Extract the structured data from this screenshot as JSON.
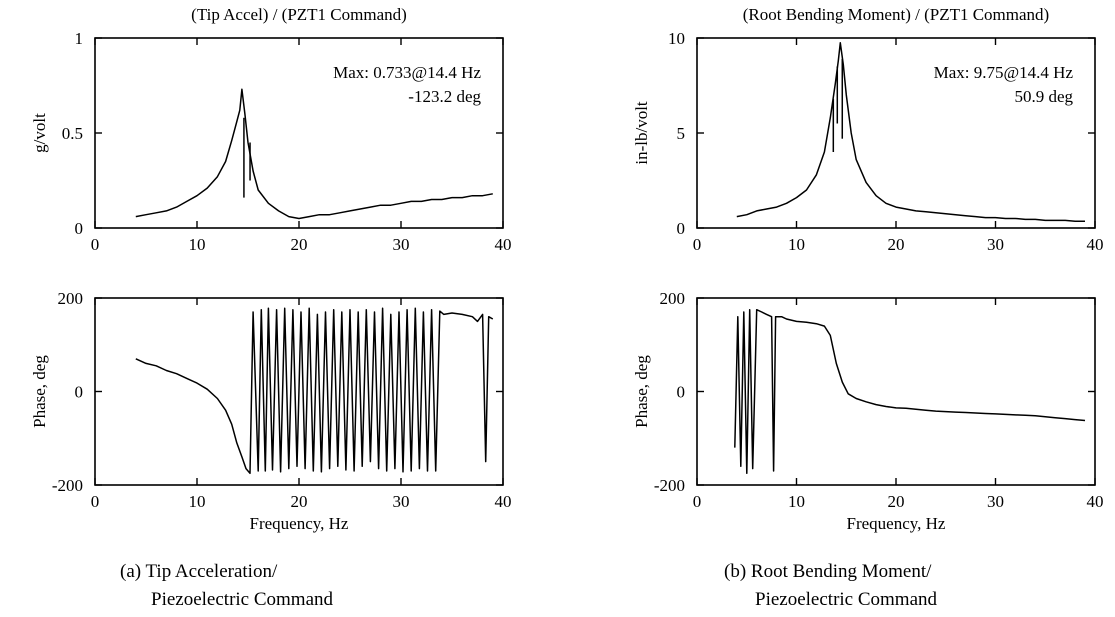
{
  "chart_data": [
    {
      "type": "line",
      "title": "(Tip Accel) / (PZT1 Command)",
      "xlabel": "",
      "ylabel": "g/volt",
      "xlim": [
        0,
        40
      ],
      "ylim": [
        0,
        1
      ],
      "xticks": [
        "0",
        "10",
        "20",
        "30",
        "40"
      ],
      "yticks": [
        "0",
        "0.5",
        "1"
      ],
      "annotation": [
        "Max: 0.733@14.4 Hz",
        "-123.2 deg"
      ],
      "series": [
        {
          "values": [
            [
              4,
              0.06
            ],
            [
              5,
              0.07
            ],
            [
              6,
              0.08
            ],
            [
              7,
              0.09
            ],
            [
              8,
              0.11
            ],
            [
              9,
              0.14
            ],
            [
              10,
              0.17
            ],
            [
              11,
              0.21
            ],
            [
              12,
              0.27
            ],
            [
              12.8,
              0.35
            ],
            [
              13.4,
              0.46
            ],
            [
              13.9,
              0.56
            ],
            [
              14.2,
              0.62
            ],
            [
              14.4,
              0.73
            ],
            [
              14.7,
              0.6
            ],
            [
              15,
              0.45
            ],
            [
              15.5,
              0.3
            ],
            [
              16,
              0.2
            ],
            [
              17,
              0.13
            ],
            [
              18,
              0.09
            ],
            [
              19,
              0.06
            ],
            [
              20,
              0.05
            ],
            [
              21,
              0.06
            ],
            [
              22,
              0.07
            ],
            [
              23,
              0.07
            ],
            [
              24,
              0.08
            ],
            [
              25,
              0.09
            ],
            [
              26,
              0.1
            ],
            [
              27,
              0.11
            ],
            [
              28,
              0.12
            ],
            [
              29,
              0.12
            ],
            [
              30,
              0.13
            ],
            [
              31,
              0.14
            ],
            [
              32,
              0.14
            ],
            [
              33,
              0.15
            ],
            [
              34,
              0.15
            ],
            [
              35,
              0.16
            ],
            [
              36,
              0.16
            ],
            [
              37,
              0.17
            ],
            [
              38,
              0.17
            ],
            [
              39,
              0.18
            ]
          ],
          "notches": [
            [
              14.6,
              0.58,
              0.16
            ],
            [
              15.2,
              0.45,
              0.25
            ]
          ]
        }
      ]
    },
    {
      "type": "line",
      "title": "(Root Bending Moment) / (PZT1 Command)",
      "xlabel": "",
      "ylabel": "in-lb/volt",
      "xlim": [
        0,
        40
      ],
      "ylim": [
        0,
        10
      ],
      "xticks": [
        "0",
        "10",
        "20",
        "30",
        "40"
      ],
      "yticks": [
        "0",
        "5",
        "10"
      ],
      "annotation": [
        "Max: 9.75@14.4 Hz",
        "50.9 deg"
      ],
      "series": [
        {
          "values": [
            [
              4,
              0.6
            ],
            [
              5,
              0.7
            ],
            [
              6,
              0.9
            ],
            [
              7,
              1.0
            ],
            [
              8,
              1.1
            ],
            [
              9,
              1.3
            ],
            [
              10,
              1.6
            ],
            [
              11,
              2.0
            ],
            [
              12,
              2.8
            ],
            [
              12.8,
              4.0
            ],
            [
              13.4,
              5.8
            ],
            [
              13.9,
              7.6
            ],
            [
              14.2,
              8.8
            ],
            [
              14.4,
              9.75
            ],
            [
              14.7,
              8.6
            ],
            [
              15,
              7.0
            ],
            [
              15.5,
              5.0
            ],
            [
              16,
              3.6
            ],
            [
              17,
              2.4
            ],
            [
              18,
              1.7
            ],
            [
              19,
              1.3
            ],
            [
              20,
              1.1
            ],
            [
              21,
              1.0
            ],
            [
              22,
              0.9
            ],
            [
              23,
              0.85
            ],
            [
              24,
              0.8
            ],
            [
              25,
              0.75
            ],
            [
              26,
              0.7
            ],
            [
              27,
              0.65
            ],
            [
              28,
              0.6
            ],
            [
              29,
              0.55
            ],
            [
              30,
              0.55
            ],
            [
              31,
              0.5
            ],
            [
              32,
              0.5
            ],
            [
              33,
              0.45
            ],
            [
              34,
              0.45
            ],
            [
              35,
              0.4
            ],
            [
              36,
              0.4
            ],
            [
              37,
              0.4
            ],
            [
              38,
              0.35
            ],
            [
              39,
              0.35
            ]
          ],
          "notches": [
            [
              14.1,
              8.5,
              5.5
            ],
            [
              14.6,
              8.9,
              4.7
            ],
            [
              13.7,
              6.8,
              4.0
            ]
          ]
        }
      ]
    },
    {
      "type": "line",
      "title": "",
      "xlabel": "Frequency, Hz",
      "ylabel": "Phase, deg",
      "xlim": [
        0,
        40
      ],
      "ylim": [
        -200,
        200
      ],
      "xticks": [
        "0",
        "10",
        "20",
        "30",
        "40"
      ],
      "yticks": [
        "-200",
        "0",
        "200"
      ],
      "series": [
        {
          "values": [
            [
              4,
              70
            ],
            [
              5,
              60
            ],
            [
              6,
              55
            ],
            [
              7,
              45
            ],
            [
              8,
              38
            ],
            [
              9,
              28
            ],
            [
              10,
              18
            ],
            [
              11,
              5
            ],
            [
              12,
              -15
            ],
            [
              12.8,
              -40
            ],
            [
              13.4,
              -70
            ],
            [
              13.9,
              -110
            ],
            [
              14.4,
              -140
            ],
            [
              14.8,
              -165
            ],
            [
              15.2,
              -175
            ],
            [
              15.5,
              170
            ],
            [
              16,
              -170
            ],
            [
              16.3,
              175
            ],
            [
              16.7,
              -170
            ],
            [
              17,
              178
            ],
            [
              17.4,
              -168
            ],
            [
              17.8,
              175
            ],
            [
              18.2,
              -172
            ],
            [
              18.6,
              178
            ],
            [
              19,
              -165
            ],
            [
              19.4,
              175
            ],
            [
              19.8,
              -160
            ],
            [
              20.2,
              170
            ],
            [
              20.6,
              -165
            ],
            [
              21,
              178
            ],
            [
              21.4,
              -170
            ],
            [
              21.8,
              165
            ],
            [
              22.2,
              -172
            ],
            [
              22.6,
              170
            ],
            [
              23,
              -165
            ],
            [
              23.4,
              175
            ],
            [
              23.8,
              -160
            ],
            [
              24.2,
              170
            ],
            [
              24.6,
              -168
            ],
            [
              25,
              175
            ],
            [
              25.4,
              -170
            ],
            [
              25.8,
              170
            ],
            [
              26.2,
              -160
            ],
            [
              26.6,
              175
            ],
            [
              27,
              -150
            ],
            [
              27.4,
              170
            ],
            [
              27.8,
              -165
            ],
            [
              28.2,
              178
            ],
            [
              28.6,
              -170
            ],
            [
              29,
              165
            ],
            [
              29.4,
              -165
            ],
            [
              29.8,
              170
            ],
            [
              30.2,
              -172
            ],
            [
              30.6,
              175
            ],
            [
              31,
              -170
            ],
            [
              31.4,
              178
            ],
            [
              31.8,
              -165
            ],
            [
              32.2,
              170
            ],
            [
              32.6,
              -170
            ],
            [
              33,
              175
            ],
            [
              33.4,
              -170
            ],
            [
              33.8,
              172
            ],
            [
              34.2,
              165
            ],
            [
              35,
              168
            ],
            [
              36,
              165
            ],
            [
              37,
              160
            ],
            [
              37.5,
              150
            ],
            [
              38,
              165
            ],
            [
              38.3,
              -150
            ],
            [
              38.6,
              160
            ],
            [
              39,
              155
            ]
          ]
        }
      ]
    },
    {
      "type": "line",
      "title": "",
      "xlabel": "Frequency, Hz",
      "ylabel": "Phase, deg",
      "xlim": [
        0,
        40
      ],
      "ylim": [
        -200,
        200
      ],
      "xticks": [
        "0",
        "10",
        "20",
        "30",
        "40"
      ],
      "yticks": [
        "-200",
        "0",
        "200"
      ],
      "series": [
        {
          "values": [
            [
              3.8,
              -120
            ],
            [
              4.1,
              160
            ],
            [
              4.4,
              -160
            ],
            [
              4.7,
              170
            ],
            [
              5,
              -175
            ],
            [
              5.3,
              175
            ],
            [
              5.6,
              -165
            ],
            [
              6,
              175
            ],
            [
              6.5,
              170
            ],
            [
              7,
              165
            ],
            [
              7.5,
              160
            ],
            [
              7.7,
              -170
            ],
            [
              7.9,
              160
            ],
            [
              8.5,
              160
            ],
            [
              9,
              155
            ],
            [
              10,
              150
            ],
            [
              11,
              148
            ],
            [
              12,
              145
            ],
            [
              12.8,
              140
            ],
            [
              13.4,
              120
            ],
            [
              14,
              60
            ],
            [
              14.6,
              20
            ],
            [
              15.2,
              -5
            ],
            [
              16,
              -15
            ],
            [
              17,
              -22
            ],
            [
              18,
              -28
            ],
            [
              19,
              -32
            ],
            [
              20,
              -35
            ],
            [
              21,
              -36
            ],
            [
              22,
              -38
            ],
            [
              23,
              -40
            ],
            [
              24,
              -42
            ],
            [
              25,
              -43
            ],
            [
              26,
              -44
            ],
            [
              27,
              -45
            ],
            [
              28,
              -46
            ],
            [
              29,
              -47
            ],
            [
              30,
              -48
            ],
            [
              31,
              -49
            ],
            [
              32,
              -50
            ],
            [
              33,
              -51
            ],
            [
              34,
              -52
            ],
            [
              35,
              -54
            ],
            [
              36,
              -56
            ],
            [
              37,
              -58
            ],
            [
              38,
              -60
            ],
            [
              39,
              -62
            ]
          ]
        }
      ]
    }
  ],
  "captions": [
    {
      "line1": "(a)  Tip Acceleration/",
      "line2": "Piezoelectric Command"
    },
    {
      "line1": "(b)  Root Bending Moment/",
      "line2": "Piezoelectric Command"
    }
  ]
}
